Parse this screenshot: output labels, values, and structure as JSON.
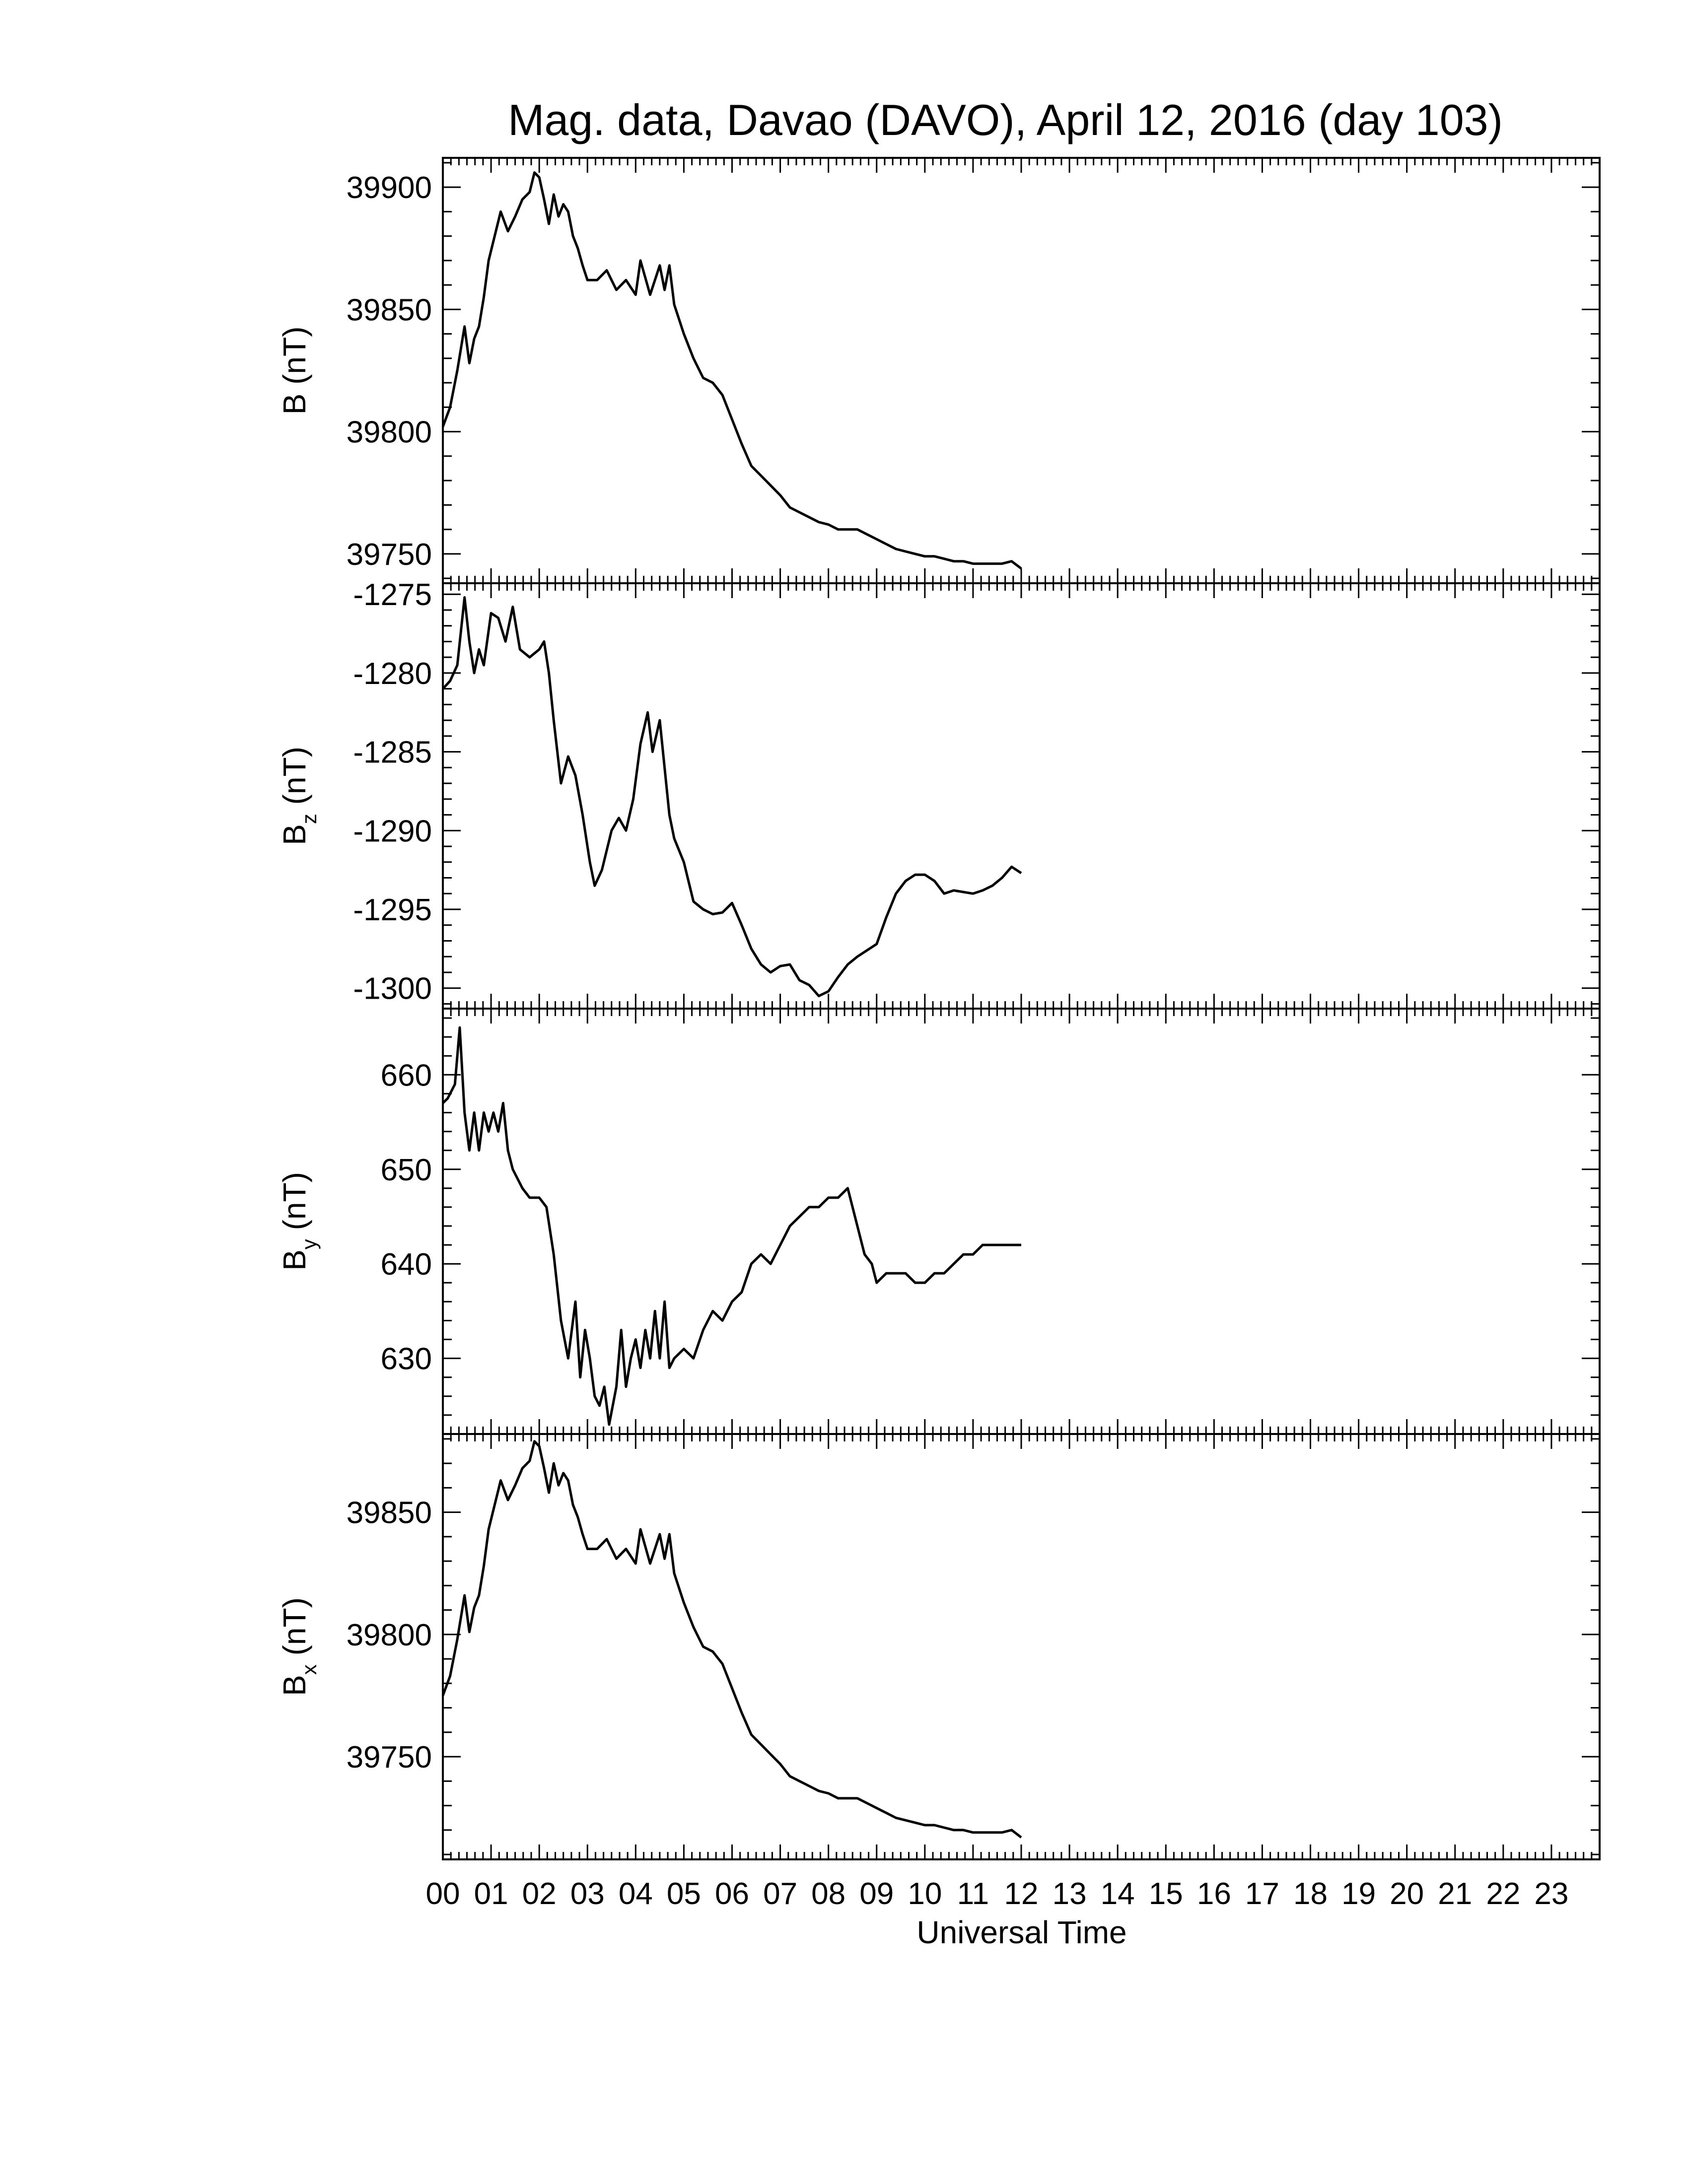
{
  "title": "Mag. data, Davao (DAVO), April 12, 2016 (day 103)",
  "xaxis": {
    "label": "Universal Time",
    "range": [
      0,
      24
    ],
    "tick_labels": [
      "00",
      "01",
      "02",
      "03",
      "04",
      "05",
      "06",
      "07",
      "08",
      "09",
      "10",
      "11",
      "12",
      "13",
      "14",
      "15",
      "16",
      "17",
      "18",
      "19",
      "20",
      "21",
      "22",
      "23"
    ]
  },
  "colors": {
    "line": "#000000",
    "frame": "#000000",
    "background": "#ffffff"
  },
  "panels": [
    {
      "key": "B",
      "label_main": "B (nT)",
      "label_sub": "",
      "label_tail": "",
      "ylim": [
        39738,
        39912
      ],
      "yticks": [
        39750,
        39800,
        39850,
        39900
      ],
      "ytick_labels": [
        "39750",
        "39800",
        "39850",
        "39900"
      ]
    },
    {
      "key": "Bz",
      "label_main": "B",
      "label_sub": "z",
      "label_tail": " (nT)",
      "ylim": [
        -1301.3,
        -1274.3
      ],
      "yticks": [
        -1300,
        -1295,
        -1290,
        -1285,
        -1280,
        -1275
      ],
      "ytick_labels": [
        "-1300",
        "-1295",
        "-1290",
        "-1285",
        "-1280",
        "-1275"
      ]
    },
    {
      "key": "By",
      "label_main": "B",
      "label_sub": "y",
      "label_tail": " (nT)",
      "ylim": [
        622,
        667
      ],
      "yticks": [
        630,
        640,
        650,
        660
      ],
      "ytick_labels": [
        "630",
        "640",
        "650",
        "660"
      ]
    },
    {
      "key": "Bx",
      "label_main": "B",
      "label_sub": "x",
      "label_tail": " (nT)",
      "ylim": [
        39708,
        39882
      ],
      "yticks": [
        39750,
        39800,
        39850
      ],
      "ytick_labels": [
        "39750",
        "39800",
        "39850"
      ]
    }
  ],
  "chart_data": {
    "type": "line",
    "title": "Mag. data, Davao (DAVO), April 12, 2016 (day 103)",
    "xlabel": "Universal Time",
    "xlim": [
      0,
      24
    ],
    "grid": false,
    "legend": "none",
    "series": [
      {
        "panel": "B",
        "ylabel": "B (nT)",
        "ylim": [
          39738,
          39912
        ],
        "x": [
          0,
          0.15,
          0.3,
          0.45,
          0.55,
          0.65,
          0.75,
          0.85,
          0.95,
          1.05,
          1.2,
          1.35,
          1.5,
          1.65,
          1.8,
          1.9,
          2.0,
          2.1,
          2.2,
          2.3,
          2.4,
          2.5,
          2.6,
          2.7,
          2.8,
          2.9,
          3.0,
          3.2,
          3.4,
          3.6,
          3.8,
          4.0,
          4.1,
          4.3,
          4.5,
          4.6,
          4.7,
          4.8,
          5.0,
          5.2,
          5.4,
          5.6,
          5.8,
          6.0,
          6.2,
          6.4,
          6.6,
          6.8,
          7.0,
          7.2,
          7.4,
          7.6,
          7.8,
          8.0,
          8.2,
          8.4,
          8.6,
          8.8,
          9.0,
          9.2,
          9.4,
          9.6,
          9.8,
          10.0,
          10.2,
          10.4,
          10.6,
          10.8,
          11.0,
          11.2,
          11.4,
          11.6,
          11.8,
          12.0
        ],
        "y": [
          39802,
          39810,
          39825,
          39843,
          39828,
          39838,
          39843,
          39855,
          39870,
          39878,
          39890,
          39882,
          39888,
          39895,
          39898,
          39906,
          39904,
          39895,
          39885,
          39897,
          39888,
          39893,
          39890,
          39880,
          39875,
          39868,
          39862,
          39862,
          39866,
          39858,
          39862,
          39856,
          39870,
          39856,
          39868,
          39858,
          39868,
          39852,
          39840,
          39830,
          39822,
          39820,
          39815,
          39805,
          39795,
          39786,
          39782,
          39778,
          39774,
          39769,
          39767,
          39765,
          39763,
          39762,
          39760,
          39760,
          39760,
          39758,
          39756,
          39754,
          39752,
          39751,
          39750,
          39749,
          39749,
          39748,
          39747,
          39747,
          39746,
          39746,
          39746,
          39746,
          39747,
          39744
        ]
      },
      {
        "panel": "Bz",
        "ylabel": "Bz (nT)",
        "ylim": [
          -1301.3,
          -1274.3
        ],
        "x": [
          0,
          0.15,
          0.3,
          0.45,
          0.55,
          0.65,
          0.75,
          0.85,
          1.0,
          1.15,
          1.3,
          1.45,
          1.6,
          1.8,
          2.0,
          2.1,
          2.2,
          2.3,
          2.45,
          2.6,
          2.75,
          2.9,
          3.05,
          3.15,
          3.3,
          3.5,
          3.65,
          3.8,
          3.95,
          4.1,
          4.25,
          4.35,
          4.5,
          4.6,
          4.7,
          4.8,
          5.0,
          5.2,
          5.4,
          5.6,
          5.8,
          6.0,
          6.2,
          6.4,
          6.6,
          6.8,
          7.0,
          7.2,
          7.4,
          7.6,
          7.8,
          8.0,
          8.2,
          8.4,
          8.6,
          8.8,
          9.0,
          9.2,
          9.4,
          9.6,
          9.8,
          10.0,
          10.2,
          10.4,
          10.6,
          10.8,
          11.0,
          11.2,
          11.4,
          11.6,
          11.8,
          12.0
        ],
        "y": [
          -1281,
          -1280.5,
          -1279.5,
          -1275.2,
          -1278,
          -1280,
          -1278.5,
          -1279.5,
          -1276.2,
          -1276.5,
          -1278,
          -1275.8,
          -1278.5,
          -1279,
          -1278.5,
          -1278,
          -1280,
          -1283,
          -1287,
          -1285.3,
          -1286.5,
          -1289,
          -1292,
          -1293.5,
          -1292.5,
          -1290,
          -1289.2,
          -1290,
          -1288,
          -1284.5,
          -1282.5,
          -1285,
          -1283,
          -1286,
          -1289,
          -1290.5,
          -1292,
          -1294.5,
          -1295,
          -1295.3,
          -1295.2,
          -1294.6,
          -1296,
          -1297.5,
          -1298.5,
          -1299,
          -1298.6,
          -1298.5,
          -1299.5,
          -1299.8,
          -1300.5,
          -1300.2,
          -1299.3,
          -1298.5,
          -1298,
          -1297.6,
          -1297.2,
          -1295.5,
          -1294,
          -1293.2,
          -1292.8,
          -1292.8,
          -1293.2,
          -1294,
          -1293.8,
          -1293.9,
          -1294,
          -1293.8,
          -1293.5,
          -1293,
          -1292.3,
          -1292.7
        ]
      },
      {
        "panel": "By",
        "ylabel": "By (nT)",
        "ylim": [
          622,
          667
        ],
        "x": [
          0,
          0.1,
          0.25,
          0.35,
          0.45,
          0.55,
          0.65,
          0.75,
          0.85,
          0.95,
          1.05,
          1.15,
          1.25,
          1.35,
          1.45,
          1.55,
          1.65,
          1.8,
          2.0,
          2.15,
          2.3,
          2.45,
          2.6,
          2.75,
          2.85,
          2.95,
          3.05,
          3.15,
          3.25,
          3.35,
          3.45,
          3.6,
          3.7,
          3.8,
          3.9,
          4.0,
          4.1,
          4.2,
          4.3,
          4.4,
          4.5,
          4.6,
          4.7,
          4.8,
          5.0,
          5.2,
          5.4,
          5.6,
          5.8,
          6.0,
          6.2,
          6.4,
          6.6,
          6.8,
          7.0,
          7.2,
          7.4,
          7.6,
          7.8,
          8.0,
          8.2,
          8.4,
          8.6,
          8.75,
          8.9,
          9.0,
          9.2,
          9.4,
          9.6,
          9.8,
          10.0,
          10.2,
          10.4,
          10.6,
          10.8,
          11.0,
          11.2,
          11.4,
          11.6,
          11.8,
          12.0
        ],
        "y": [
          657,
          657.5,
          659,
          665,
          656,
          652,
          656,
          652,
          656,
          654,
          656,
          654,
          657,
          652,
          650,
          649,
          648,
          647,
          647,
          646,
          641,
          634,
          630,
          636,
          628,
          633,
          630,
          626,
          625,
          627,
          623,
          627,
          633,
          627,
          630,
          632,
          629,
          633,
          630,
          635,
          630,
          636,
          629,
          630,
          631,
          630,
          633,
          635,
          634,
          636,
          637,
          640,
          641,
          640,
          642,
          644,
          645,
          646,
          646,
          647,
          647,
          648,
          644,
          641,
          640,
          638,
          639,
          639,
          639,
          638,
          638,
          639,
          639,
          640,
          641,
          641,
          642,
          642,
          642,
          642,
          642
        ]
      },
      {
        "panel": "Bx",
        "ylabel": "Bx (nT)",
        "ylim": [
          39708,
          39882
        ],
        "x": [
          0,
          0.15,
          0.3,
          0.45,
          0.55,
          0.65,
          0.75,
          0.85,
          0.95,
          1.05,
          1.2,
          1.35,
          1.5,
          1.65,
          1.8,
          1.9,
          2.0,
          2.1,
          2.2,
          2.3,
          2.4,
          2.5,
          2.6,
          2.7,
          2.8,
          2.9,
          3.0,
          3.2,
          3.4,
          3.6,
          3.8,
          4.0,
          4.1,
          4.3,
          4.5,
          4.6,
          4.7,
          4.8,
          5.0,
          5.2,
          5.4,
          5.6,
          5.8,
          6.0,
          6.2,
          6.4,
          6.6,
          6.8,
          7.0,
          7.2,
          7.4,
          7.6,
          7.8,
          8.0,
          8.2,
          8.4,
          8.6,
          8.8,
          9.0,
          9.2,
          9.4,
          9.6,
          9.8,
          10.0,
          10.2,
          10.4,
          10.6,
          10.8,
          11.0,
          11.2,
          11.4,
          11.6,
          11.8,
          12.0
        ],
        "y": [
          39775,
          39783,
          39798,
          39816,
          39801,
          39811,
          39816,
          39828,
          39843,
          39851,
          39863,
          39855,
          39861,
          39868,
          39871,
          39879,
          39877,
          39868,
          39858,
          39870,
          39861,
          39866,
          39863,
          39853,
          39848,
          39841,
          39835,
          39835,
          39839,
          39831,
          39835,
          39829,
          39843,
          39829,
          39841,
          39831,
          39841,
          39825,
          39813,
          39803,
          39795,
          39793,
          39788,
          39778,
          39768,
          39759,
          39755,
          39751,
          39747,
          39742,
          39740,
          39738,
          39736,
          39735,
          39733,
          39733,
          39733,
          39731,
          39729,
          39727,
          39725,
          39724,
          39723,
          39722,
          39722,
          39721,
          39720,
          39720,
          39719,
          39719,
          39719,
          39719,
          39720,
          39717
        ]
      }
    ]
  }
}
